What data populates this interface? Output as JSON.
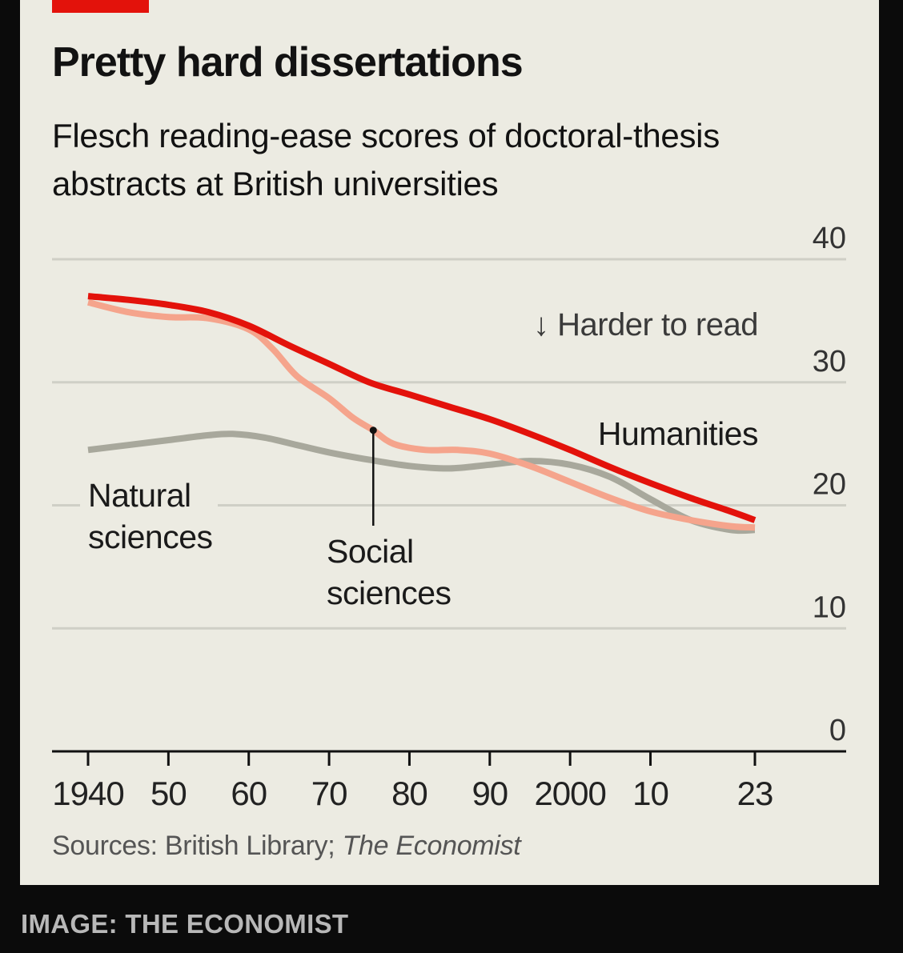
{
  "header": {
    "title": "Pretty hard dissertations",
    "subtitle": "Flesch reading-ease scores of doctoral-thesis abstracts at British universities"
  },
  "footer": {
    "source_prefix": "Sources: British Library; ",
    "source_publication": "The Economist",
    "credit": "IMAGE: THE ECONOMIST"
  },
  "colors": {
    "background": "#ecebe2",
    "accent": "#e3120b",
    "humanities": "#e3120b",
    "social_sciences": "#f5a48c",
    "natural_sciences": "#a8a89c",
    "grid": "#cfcfc6"
  },
  "chart_data": {
    "type": "line",
    "title": "Pretty hard dissertations",
    "subtitle": "Flesch reading-ease scores of doctoral-thesis abstracts at British universities",
    "x_range": [
      1940,
      2023
    ],
    "ylim": [
      0,
      40
    ],
    "y_ticks": [
      0,
      10,
      20,
      30,
      40
    ],
    "y_tick_labels": [
      "0",
      "10",
      "20",
      "30",
      "40"
    ],
    "x_ticks": [
      1940,
      1950,
      1960,
      1970,
      1980,
      1990,
      2000,
      2010,
      2023
    ],
    "x_tick_labels": [
      "1940",
      "50",
      "60",
      "70",
      "80",
      "90",
      "2000",
      "10",
      "23"
    ],
    "annotation": "↓ Harder to read",
    "series": [
      {
        "name": "Natural sciences",
        "label_lines": [
          "Natural",
          "sciences"
        ],
        "x": [
          1940,
          1945,
          1950,
          1955,
          1958,
          1962,
          1966,
          1970,
          1975,
          1980,
          1985,
          1990,
          1995,
          2000,
          2005,
          2010,
          2015,
          2020,
          2023
        ],
        "values": [
          24.5,
          24.9,
          25.3,
          25.7,
          25.8,
          25.5,
          24.9,
          24.3,
          23.7,
          23.2,
          23.0,
          23.3,
          23.6,
          23.3,
          22.3,
          20.5,
          18.8,
          18.0,
          18.0
        ]
      },
      {
        "name": "Social sciences",
        "label_lines": [
          "Social",
          "sciences"
        ],
        "x": [
          1940,
          1945,
          1950,
          1955,
          1960,
          1963,
          1966,
          1970,
          1973,
          1975.5,
          1978,
          1982,
          1986,
          1990,
          1995,
          2000,
          2005,
          2010,
          2015,
          2020,
          2023
        ],
        "values": [
          36.5,
          35.7,
          35.3,
          35.2,
          34.3,
          32.7,
          30.5,
          28.7,
          27.1,
          26.1,
          25.0,
          24.5,
          24.5,
          24.2,
          23.2,
          21.9,
          20.6,
          19.5,
          18.8,
          18.3,
          18.2
        ]
      },
      {
        "name": "Humanities",
        "label_lines": [
          "Humanities"
        ],
        "x": [
          1940,
          1945,
          1950,
          1955,
          1960,
          1965,
          1970,
          1975,
          1980,
          1985,
          1990,
          1995,
          2000,
          2005,
          2010,
          2015,
          2020,
          2023
        ],
        "values": [
          37.0,
          36.7,
          36.3,
          35.7,
          34.6,
          33.0,
          31.5,
          30.0,
          29.0,
          28.0,
          27.0,
          25.8,
          24.5,
          23.1,
          21.8,
          20.6,
          19.5,
          18.8
        ]
      }
    ],
    "pointer": {
      "series": "Social sciences",
      "x": 1975.5
    }
  }
}
